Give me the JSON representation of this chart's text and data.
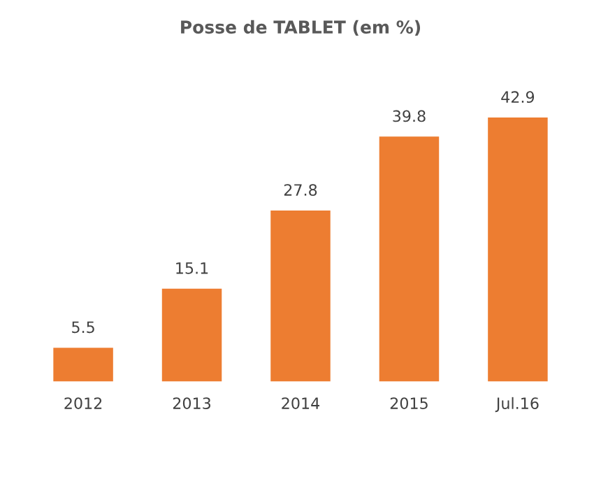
{
  "chart_data": {
    "type": "bar",
    "title": "Posse de TABLET (em %)",
    "categories": [
      "2012",
      "2013",
      "2014",
      "2015",
      "Jul.16"
    ],
    "values": [
      5.5,
      15.1,
      27.8,
      39.8,
      42.9
    ],
    "color": "#ed7d31",
    "data_labels": true,
    "grid": false,
    "legend": false
  }
}
